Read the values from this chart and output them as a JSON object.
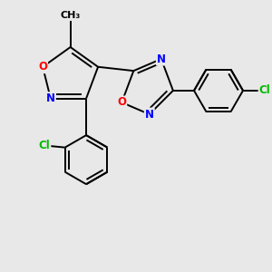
{
  "bg_color": "#e8e8e8",
  "bond_color": "#000000",
  "n_color": "#0000ff",
  "o_color": "#ff0000",
  "cl_color": "#00bb00",
  "line_width": 1.4,
  "font_size_atom": 8.5,
  "figsize": [
    3.0,
    3.0
  ],
  "dpi": 100,
  "xlim": [
    -0.5,
    6.2
  ],
  "ylim": [
    -1.8,
    4.2
  ]
}
